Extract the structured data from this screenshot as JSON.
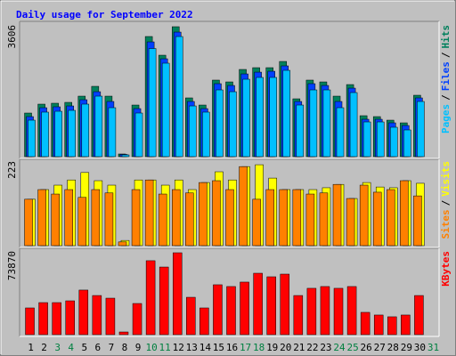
{
  "title": "Daily usage for September 2022",
  "title_color": "#0000ff",
  "separator": "/",
  "categories": [
    "1",
    "2",
    "3",
    "4",
    "5",
    "6",
    "7",
    "8",
    "9",
    "10",
    "11",
    "12",
    "13",
    "14",
    "15",
    "16",
    "17",
    "18",
    "19",
    "20",
    "21",
    "22",
    "23",
    "24",
    "25",
    "26",
    "27",
    "28",
    "29",
    "30",
    "31"
  ],
  "category_colors": [
    "#000000",
    "#000000",
    "#008040",
    "#008040",
    "#000000",
    "#000000",
    "#000000",
    "#000000",
    "#000000",
    "#008040",
    "#008040",
    "#000000",
    "#000000",
    "#000000",
    "#000000",
    "#000000",
    "#008040",
    "#008040",
    "#000000",
    "#000000",
    "#000000",
    "#000000",
    "#000000",
    "#008040",
    "#008040",
    "#000000",
    "#000000",
    "#000000",
    "#000000",
    "#000000",
    "#008040"
  ],
  "chart_data": [
    {
      "type": "bar",
      "ylim": [
        0,
        3606
      ],
      "yticks": [
        3606
      ],
      "series": [
        {
          "name": "Hits",
          "color": "#00805c",
          "values": [
            1210,
            1457,
            1482,
            1506,
            1679,
            1951,
            1679,
            74,
            1432,
            3334,
            2815,
            3606,
            1630,
            1432,
            2124,
            2074,
            2420,
            2469,
            2469,
            2642,
            1605,
            2124,
            2074,
            1679,
            2000,
            1136,
            1111,
            1012,
            938,
            1704,
            0
          ]
        },
        {
          "name": "Files",
          "color": "#0040ff",
          "values": [
            1111,
            1358,
            1383,
            1407,
            1580,
            1802,
            1531,
            62,
            1333,
            3185,
            2716,
            3457,
            1531,
            1333,
            2025,
            1975,
            2296,
            2345,
            2370,
            2519,
            1531,
            2025,
            1975,
            1531,
            1901,
            1037,
            1037,
            938,
            864,
            1630,
            0
          ]
        },
        {
          "name": "Pages",
          "color": "#00c0ff",
          "values": [
            1012,
            1235,
            1259,
            1284,
            1457,
            1679,
            1358,
            49,
            1210,
            3000,
            2593,
            3333,
            1407,
            1235,
            1852,
            1802,
            2148,
            2198,
            2198,
            2395,
            1432,
            1852,
            1852,
            1358,
            1778,
            963,
            963,
            815,
            741,
            1531,
            0
          ]
        }
      ]
    },
    {
      "type": "bar",
      "ylim": [
        0,
        223
      ],
      "yticks": [
        223
      ],
      "series": [
        {
          "name": "Visits",
          "color": "#ffff00",
          "values": [
            125,
            151,
            163,
            177,
            197,
            175,
            163,
            14,
            177,
            177,
            163,
            177,
            151,
            170,
            199,
            177,
            213,
            218,
            182,
            151,
            151,
            151,
            156,
            165,
            127,
            170,
            158,
            156,
            175,
            168,
            0
          ]
        },
        {
          "name": "Sites",
          "color": "#ff8000",
          "values": [
            125,
            151,
            139,
            151,
            130,
            151,
            142,
            10,
            151,
            177,
            139,
            151,
            142,
            170,
            175,
            151,
            213,
            125,
            151,
            151,
            151,
            139,
            142,
            165,
            127,
            163,
            144,
            151,
            175,
            134,
            0
          ]
        }
      ]
    },
    {
      "type": "bar",
      "ylim": [
        0,
        73870
      ],
      "yticks": [
        73870
      ],
      "series": [
        {
          "name": "KBytes",
          "color": "#ff0000",
          "values": [
            24100,
            28900,
            28900,
            30500,
            40200,
            35300,
            32900,
            2400,
            28100,
            66700,
            61000,
            73870,
            33700,
            24100,
            45000,
            43400,
            47400,
            55400,
            52200,
            54600,
            35300,
            41800,
            43400,
            41800,
            43400,
            20100,
            17700,
            16100,
            17700,
            35300,
            0
          ]
        }
      ]
    }
  ]
}
